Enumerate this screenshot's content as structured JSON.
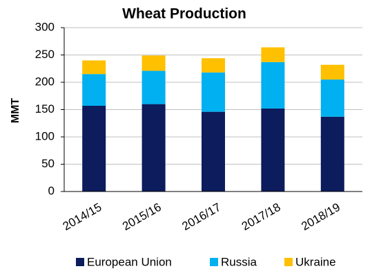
{
  "chart_data": {
    "type": "stacked_bar",
    "title": "Wheat Production",
    "y_label": "MMT",
    "categories": [
      "2014/15",
      "2015/16",
      "2016/17",
      "2017/18",
      "2018/19"
    ],
    "series": [
      {
        "name": "European Union",
        "color": "#0c1c5c",
        "values": [
          157,
          160,
          146,
          152,
          137
        ]
      },
      {
        "name": "Russia",
        "color": "#00b0f0",
        "values": [
          58,
          61,
          72,
          85,
          68
        ]
      },
      {
        "name": "Ukraine",
        "color": "#ffc000",
        "values": [
          25,
          28,
          26,
          27,
          27
        ]
      }
    ],
    "ylim": [
      0,
      300
    ],
    "yticks": [
      0,
      50,
      100,
      150,
      200,
      250,
      300
    ],
    "grid": true
  }
}
